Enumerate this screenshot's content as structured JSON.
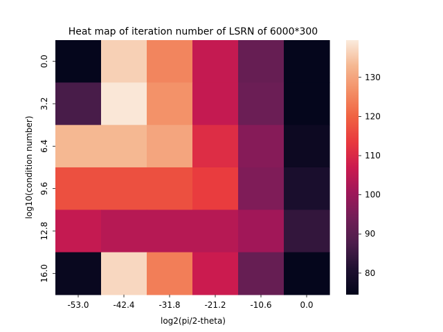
{
  "chart_data": {
    "type": "heatmap",
    "title": "Heat map of iteration number of LSRN of 6000*300",
    "xlabel": "log2(pi/2-theta)",
    "ylabel": "log10(condition number)",
    "x_categories": [
      "-53.0",
      "-42.4",
      "-31.8",
      "-21.2",
      "-10.6",
      "0.0"
    ],
    "y_categories": [
      "0.0",
      "3.2",
      "6.4",
      "9.6",
      "12.8",
      "16.0"
    ],
    "values": [
      [
        75,
        136,
        125,
        106,
        92,
        75
      ],
      [
        87,
        139,
        127,
        106,
        93,
        75
      ],
      [
        133,
        133,
        130,
        111,
        97,
        77
      ],
      [
        117,
        117,
        117,
        114,
        96,
        80
      ],
      [
        106,
        104,
        104,
        104,
        101,
        84
      ],
      [
        76,
        137,
        124,
        107,
        92,
        75
      ]
    ],
    "vmin": 74.5,
    "vmax": 139.5,
    "colorbar_ticks": [
      80,
      90,
      100,
      110,
      120,
      130
    ],
    "colormap": "rocket"
  }
}
